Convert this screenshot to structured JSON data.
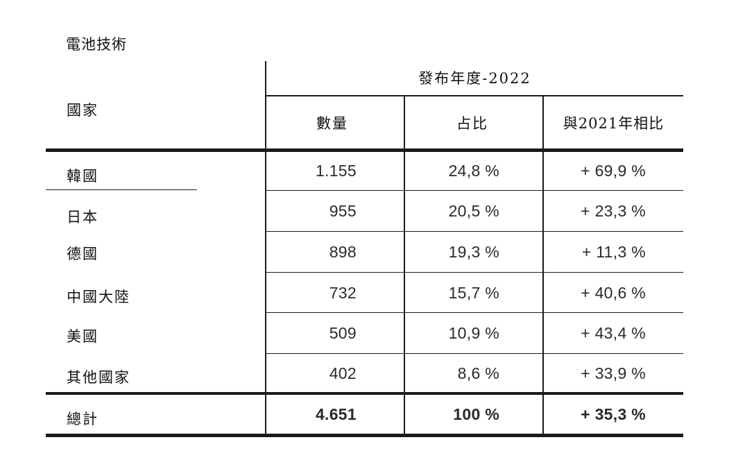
{
  "title": "電池技術",
  "header": {
    "country": "國家",
    "group": "發布年度-2022",
    "columns": [
      "數量",
      "占比",
      "與2021年相比"
    ]
  },
  "rows": [
    {
      "country": "韓國",
      "count": "1.155",
      "share": "24,8 %",
      "change": "+ 69,9 %"
    },
    {
      "country": "日本",
      "count": "955",
      "share": "20,5 %",
      "change": "+ 23,3 %"
    },
    {
      "country": "德國",
      "count": "898",
      "share": "19,3 %",
      "change": "+ 11,3 %"
    },
    {
      "country": "中國大陸",
      "count": "732",
      "share": "15,7 %",
      "change": "+ 40,6 %"
    },
    {
      "country": "美國",
      "count": "509",
      "share": "10,9 %",
      "change": "+ 43,4 %"
    },
    {
      "country": "其他國家",
      "count": "402",
      "share": "8,6 %",
      "change": "+ 33,9 %"
    }
  ],
  "total": {
    "country": "總計",
    "count": "4.651",
    "share": "100 %",
    "change": "+ 35,3 %"
  }
}
